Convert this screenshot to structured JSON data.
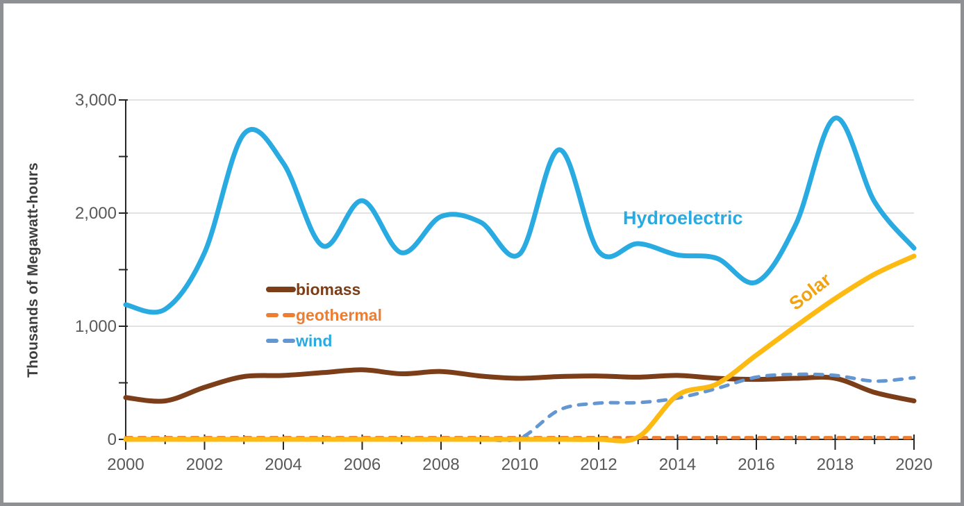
{
  "frame": {
    "border_color": "#8E9093",
    "background": "#FFFFFF"
  },
  "chart_data": {
    "type": "line",
    "title": "",
    "xlabel": "",
    "ylabel": "Thousands of Megawatt-hours",
    "years": [
      2000,
      2001,
      2002,
      2003,
      2004,
      2005,
      2006,
      2007,
      2008,
      2009,
      2010,
      2011,
      2012,
      2013,
      2014,
      2015,
      2016,
      2017,
      2018,
      2019,
      2020
    ],
    "x_range": [
      2000,
      2020
    ],
    "x_major_tick_years": [
      2000,
      2002,
      2004,
      2006,
      2008,
      2010,
      2012,
      2014,
      2016,
      2018,
      2020
    ],
    "x_minor_tick_years": [
      2001,
      2003,
      2005,
      2007,
      2009,
      2011,
      2013,
      2015,
      2017,
      2019
    ],
    "ylim": [
      0,
      3000
    ],
    "y_major_ticks": [
      0,
      1000,
      2000,
      3000
    ],
    "y_minor_ticks": [
      500,
      1500,
      2500
    ],
    "grid": "horizontal-major",
    "grid_color": "#D9D9D9",
    "axis_color": "#262626",
    "tick_label_color": "#595959",
    "series": [
      {
        "name": "geothermal",
        "color": "#ED7D31",
        "style": "dashed",
        "width": 5,
        "dash": "9 10",
        "values": [
          15,
          15,
          15,
          15,
          15,
          15,
          15,
          15,
          15,
          15,
          15,
          15,
          15,
          15,
          15,
          15,
          15,
          15,
          15,
          15,
          15
        ]
      },
      {
        "name": "biomass",
        "color": "#7B3E19",
        "style": "solid",
        "width": 7,
        "dash": null,
        "values": [
          370,
          340,
          460,
          555,
          565,
          590,
          615,
          580,
          600,
          560,
          540,
          555,
          560,
          550,
          565,
          540,
          530,
          540,
          540,
          415,
          340
        ]
      },
      {
        "name": "wind",
        "color": "#6496D2",
        "style": "dashed",
        "width": 5,
        "dash": "11 12",
        "values": [
          0,
          0,
          0,
          0,
          0,
          0,
          0,
          0,
          0,
          0,
          10,
          260,
          320,
          325,
          365,
          450,
          550,
          575,
          565,
          515,
          545
        ]
      },
      {
        "name": "Solar",
        "color": "#FDBA12",
        "style": "solid",
        "width": 7,
        "dash": null,
        "values": [
          0,
          0,
          0,
          0,
          0,
          0,
          0,
          0,
          0,
          0,
          0,
          0,
          0,
          20,
          390,
          490,
          745,
          1000,
          1245,
          1460,
          1620
        ]
      },
      {
        "name": "Hydroelectric",
        "color": "#29ABE2",
        "style": "solid",
        "width": 7,
        "dash": null,
        "values": [
          1190,
          1150,
          1650,
          2700,
          2440,
          1710,
          2110,
          1650,
          1970,
          1920,
          1640,
          2560,
          1660,
          1730,
          1630,
          1600,
          1390,
          1900,
          2840,
          2100,
          1690
        ]
      }
    ],
    "legend": {
      "position": "inside-left",
      "entries": [
        {
          "label": "biomass",
          "text_color": "#7B3E19",
          "line_color": "#7B3E19",
          "style": "solid"
        },
        {
          "label": "geothermal",
          "text_color": "#ED7D31",
          "line_color": "#ED7D31",
          "style": "dashed"
        },
        {
          "label": "wind",
          "text_color": "#29ABE2",
          "line_color": "#6496D2",
          "style": "dashed"
        }
      ]
    },
    "annotations": [
      {
        "text": "Hydroelectric",
        "color": "#29ABE2",
        "rotation": 0
      },
      {
        "text": "Solar",
        "color": "#F1A312",
        "rotation": -38
      }
    ]
  }
}
